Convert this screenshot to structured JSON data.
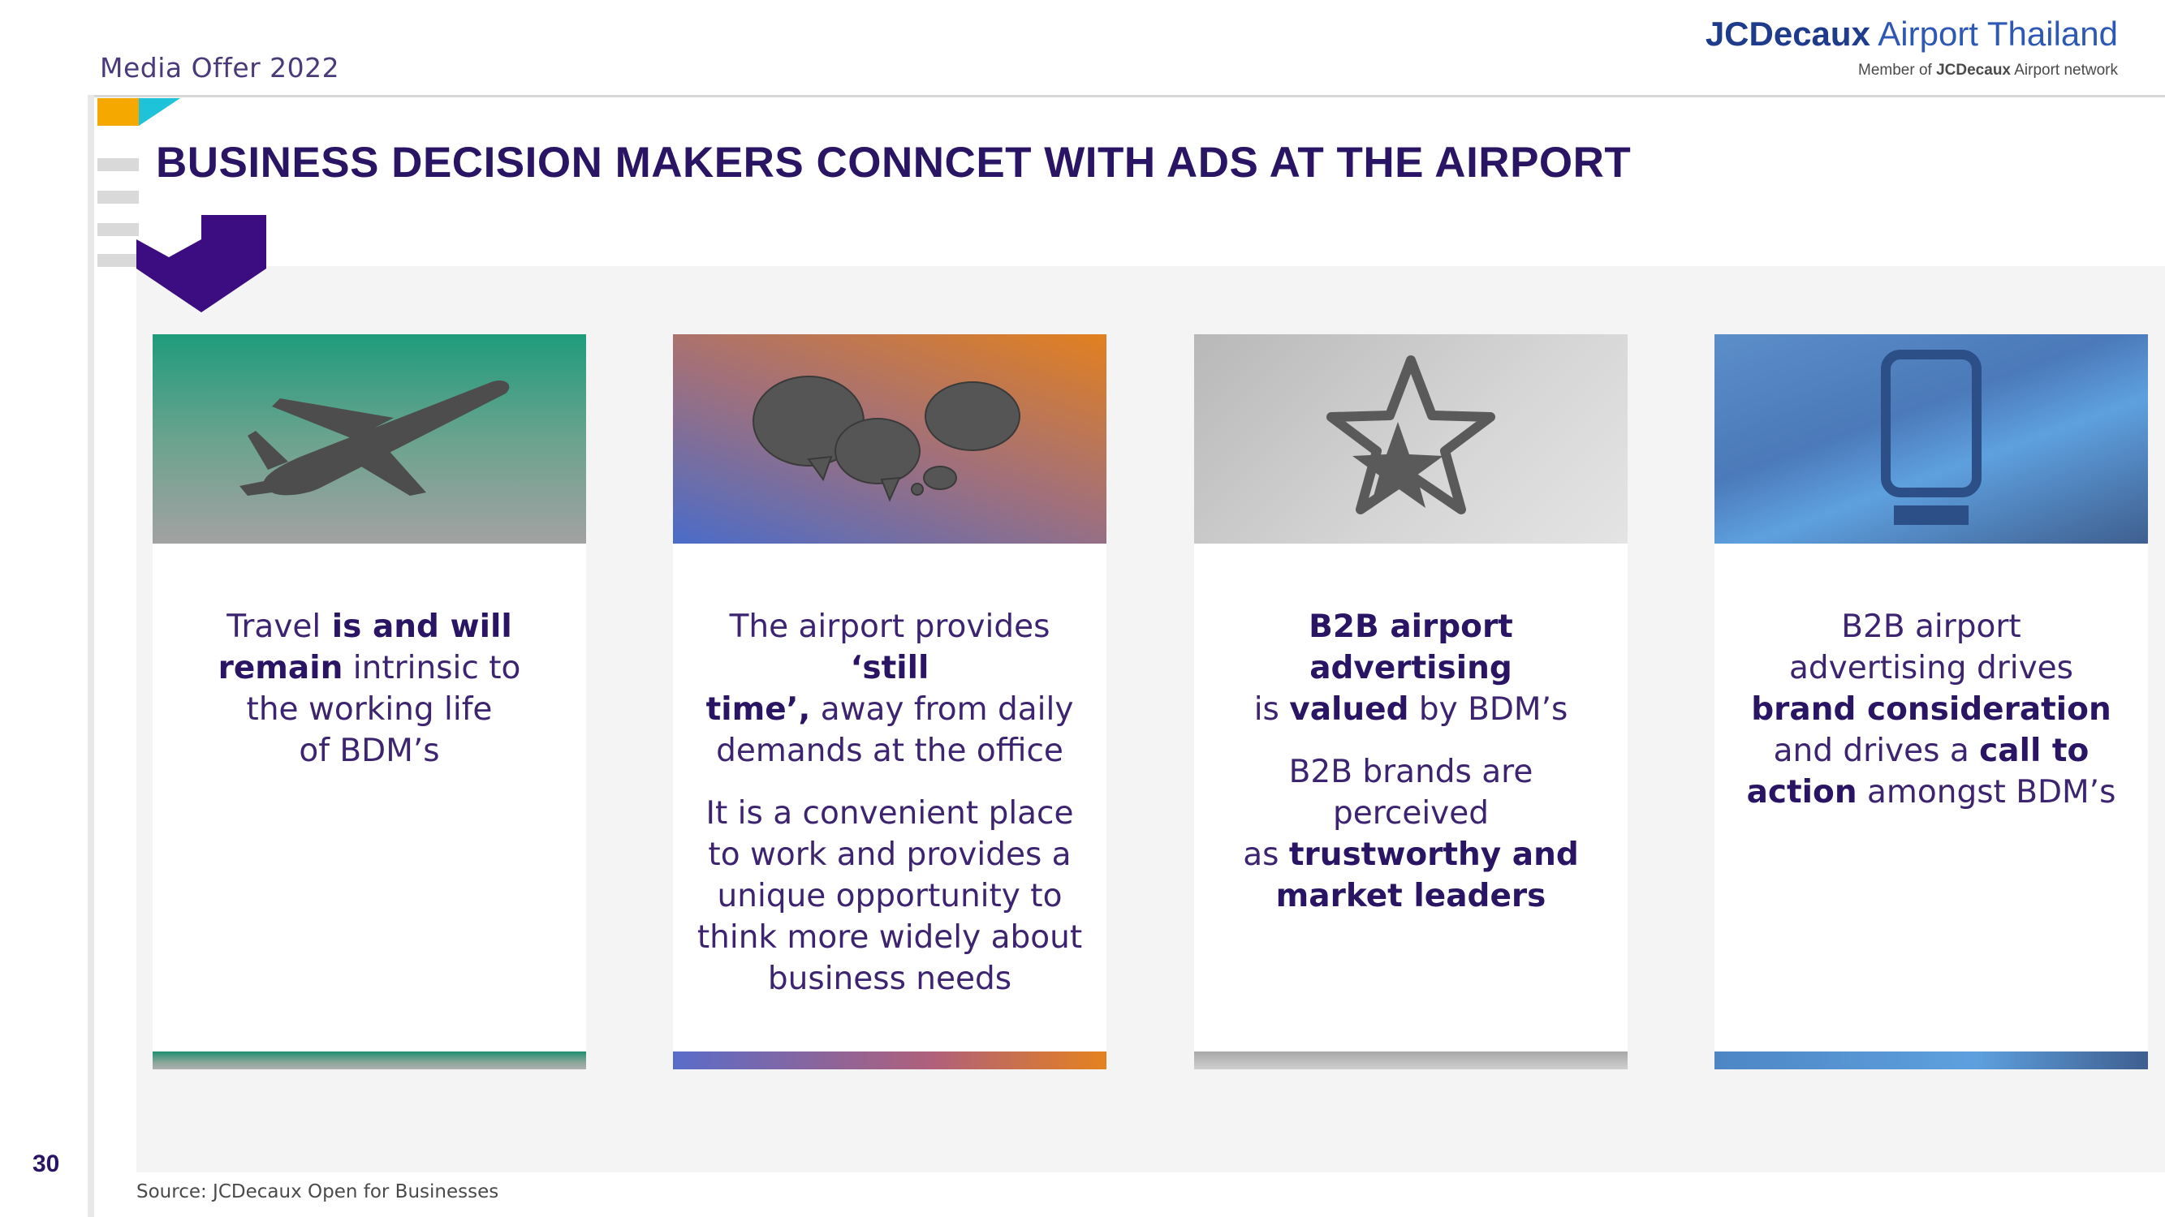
{
  "header": {
    "label": "Media Offer 2022",
    "brand_bold": "JCDecaux",
    "brand_light": " Airport Thailand",
    "brand_sub_prefix": "Member of ",
    "brand_sub_bold": "JCDecaux",
    "brand_sub_suffix": " Airport network"
  },
  "title": "BUSINESS DECISION MAKERS CONNCET WITH ADS AT THE AIRPORT",
  "cards": [
    {
      "icon": "airplane-icon",
      "t1": "Travel",
      "t2": " is and will",
      "t3": "remain",
      "t4": " intrinsic to",
      "t5": "the working life",
      "t6": "of BDM’s"
    },
    {
      "icon": "speech-bubbles-icon",
      "t1": "The airport provides ",
      "t2": "‘still",
      "t3": "time’,",
      "t4": " away from daily",
      "t5": "demands at the office",
      "t6": "It is a convenient place",
      "t7": "to work and provides a",
      "t8": "unique opportunity to",
      "t9": "think more widely about",
      "t10": "business needs"
    },
    {
      "icon": "star-icon",
      "t1": "B2B airport advertising",
      "t2": "is ",
      "t3": "valued",
      "t4": " by BDM’s",
      "t5": "B2B brands are perceived",
      "t6": "as ",
      "t7": "trustworthy and",
      "t8": "market leaders"
    },
    {
      "icon": "phone-icon",
      "t1": "B2B airport",
      "t2": "advertising drives",
      "t3": "brand consideration",
      "t4": "and drives a ",
      "t5": "call to",
      "t6": "action",
      "t7": " amongst BDM’s"
    }
  ],
  "page_number": "30",
  "source": "Source: JCDecaux Open for Businesses",
  "colors": {
    "title": "#2a1464",
    "accent_orange": "#f5a800",
    "accent_teal": "#1fc3d9",
    "chevron_purple": "#3b0d80"
  }
}
